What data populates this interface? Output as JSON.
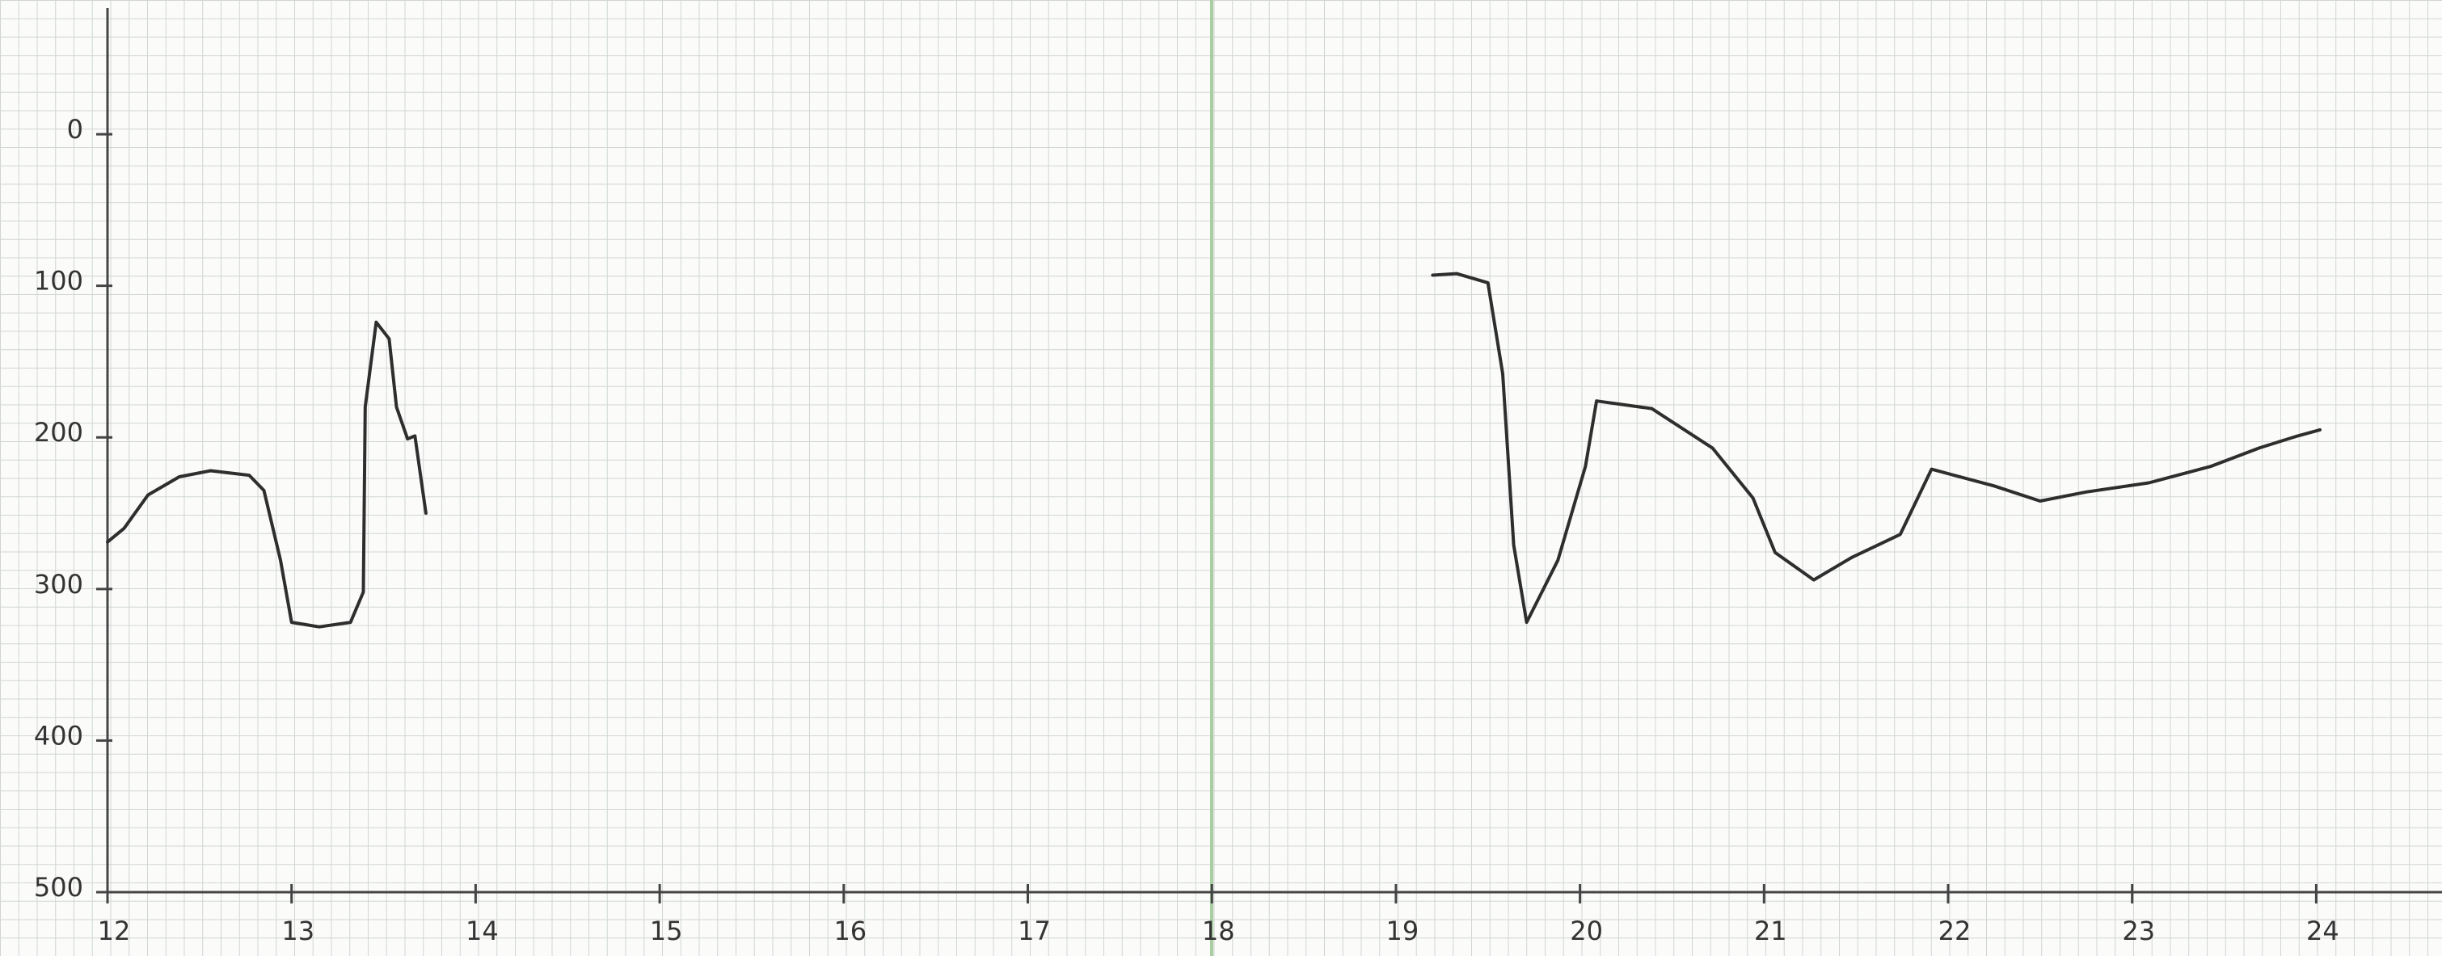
{
  "chart_data": {
    "type": "line",
    "xlim": [
      12,
      24.6
    ],
    "xticks": [
      12,
      13,
      14,
      15,
      16,
      17,
      18,
      19,
      20,
      21,
      22,
      23,
      24
    ],
    "ylim": [
      500,
      -80
    ],
    "yticks": [
      0,
      100,
      200,
      300,
      400,
      500
    ],
    "color": "#2e2e2e",
    "series": [
      {
        "color": "#2e2e2e",
        "x": [
          12.0,
          12.09,
          12.22,
          12.39,
          12.56,
          12.77,
          12.85,
          12.94,
          13.0,
          13.15,
          13.32,
          13.39,
          13.4,
          13.46,
          13.53,
          13.57,
          13.63,
          13.67,
          13.73
        ],
        "values": [
          269,
          260,
          238,
          226,
          222,
          225,
          235,
          281,
          322,
          325,
          322,
          302,
          180,
          124,
          135,
          180,
          201,
          199,
          250
        ]
      },
      {
        "color": "#2e2e2e",
        "x": [
          19.2,
          19.33,
          19.5,
          19.58,
          19.64,
          19.71,
          19.88,
          20.03,
          20.09,
          20.39,
          20.72,
          20.94,
          21.06,
          21.27,
          21.48,
          21.74,
          21.91,
          22.25,
          22.5,
          22.75,
          23.09,
          23.43,
          23.69,
          23.9,
          24.02
        ],
        "values": [
          93,
          92,
          98,
          158,
          271,
          322,
          281,
          219,
          176,
          181,
          207,
          240,
          276,
          294,
          279,
          264,
          221,
          232,
          242,
          236,
          230,
          219,
          207,
          199,
          195
        ]
      }
    ]
  }
}
